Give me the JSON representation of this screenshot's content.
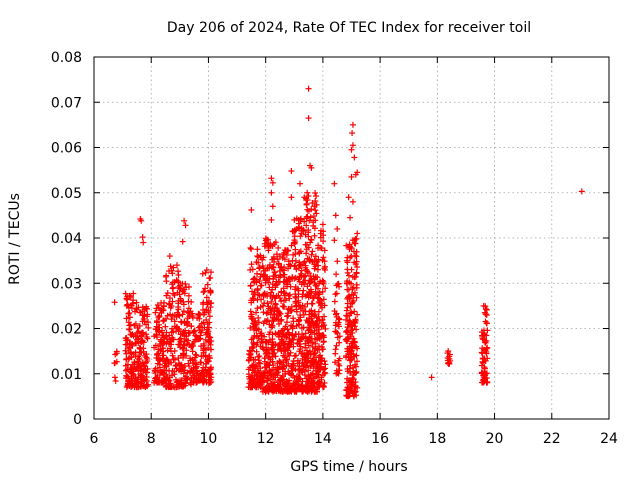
{
  "chart_data": {
    "type": "scatter",
    "title": "Day 206 of 2024, Rate Of TEC Index for receiver toil",
    "xlabel": "GPS time / hours",
    "ylabel": "ROTI / TECUs",
    "xlim": [
      6,
      24
    ],
    "ylim": [
      0,
      0.08
    ],
    "xticks": [
      "6",
      "8",
      "10",
      "12",
      "14",
      "16",
      "18",
      "20",
      "22",
      "24"
    ],
    "yticks": [
      "0",
      "0.01",
      "0.02",
      "0.03",
      "0.04",
      "0.05",
      "0.06",
      "0.07",
      "0.08"
    ],
    "grid": true,
    "marker": "+",
    "color": "#ff0000",
    "clusters": [
      {
        "x_range": [
          6.7,
          6.8
        ],
        "y_range": [
          0.008,
          0.016
        ],
        "count": 8
      },
      {
        "x_range": [
          7.1,
          7.5
        ],
        "y_range": [
          0.007,
          0.028
        ],
        "count": 120
      },
      {
        "x_range": [
          7.5,
          7.9
        ],
        "y_range": [
          0.007,
          0.025
        ],
        "count": 110
      },
      {
        "x_range": [
          8.1,
          8.5
        ],
        "y_range": [
          0.008,
          0.026
        ],
        "count": 110
      },
      {
        "x_range": [
          8.5,
          9.0
        ],
        "y_range": [
          0.007,
          0.034
        ],
        "count": 140
      },
      {
        "x_range": [
          9.0,
          9.4
        ],
        "y_range": [
          0.007,
          0.03
        ],
        "count": 110
      },
      {
        "x_range": [
          9.4,
          9.8
        ],
        "y_range": [
          0.008,
          0.024
        ],
        "count": 80
      },
      {
        "x_range": [
          9.8,
          10.1
        ],
        "y_range": [
          0.008,
          0.033
        ],
        "count": 110
      },
      {
        "x_range": [
          11.4,
          11.9
        ],
        "y_range": [
          0.007,
          0.038
        ],
        "count": 180
      },
      {
        "x_range": [
          11.9,
          12.4
        ],
        "y_range": [
          0.006,
          0.04
        ],
        "count": 220
      },
      {
        "x_range": [
          12.4,
          12.9
        ],
        "y_range": [
          0.006,
          0.038
        ],
        "count": 220
      },
      {
        "x_range": [
          12.9,
          13.4
        ],
        "y_range": [
          0.006,
          0.045
        ],
        "count": 220
      },
      {
        "x_range": [
          13.4,
          13.8
        ],
        "y_range": [
          0.006,
          0.05
        ],
        "count": 240
      },
      {
        "x_range": [
          13.8,
          14.1
        ],
        "y_range": [
          0.007,
          0.042
        ],
        "count": 120
      },
      {
        "x_range": [
          14.4,
          14.6
        ],
        "y_range": [
          0.01,
          0.035
        ],
        "count": 40
      },
      {
        "x_range": [
          14.8,
          15.2
        ],
        "y_range": [
          0.005,
          0.04
        ],
        "count": 190
      },
      {
        "x_range": [
          18.35,
          18.45
        ],
        "y_range": [
          0.012,
          0.015
        ],
        "count": 12
      },
      {
        "x_range": [
          19.55,
          19.75
        ],
        "y_range": [
          0.008,
          0.025
        ],
        "count": 70
      }
    ],
    "points": [
      [
        6.72,
        0.0258
      ],
      [
        7.65,
        0.0438
      ],
      [
        7.62,
        0.0442
      ],
      [
        7.7,
        0.0402
      ],
      [
        7.72,
        0.039
      ],
      [
        9.15,
        0.0438
      ],
      [
        9.2,
        0.0428
      ],
      [
        9.1,
        0.0392
      ],
      [
        8.65,
        0.036
      ],
      [
        8.9,
        0.034
      ],
      [
        11.5,
        0.0462
      ],
      [
        12.2,
        0.0532
      ],
      [
        12.25,
        0.0522
      ],
      [
        12.2,
        0.05
      ],
      [
        12.25,
        0.047
      ],
      [
        12.2,
        0.044
      ],
      [
        12.9,
        0.0548
      ],
      [
        12.9,
        0.049
      ],
      [
        13.2,
        0.052
      ],
      [
        13.35,
        0.049
      ],
      [
        13.5,
        0.073
      ],
      [
        13.5,
        0.0665
      ],
      [
        13.55,
        0.056
      ],
      [
        13.6,
        0.0555
      ],
      [
        13.45,
        0.05
      ],
      [
        13.7,
        0.047
      ],
      [
        14.0,
        0.043
      ],
      [
        14.4,
        0.052
      ],
      [
        14.45,
        0.045
      ],
      [
        14.5,
        0.042
      ],
      [
        14.4,
        0.0395
      ],
      [
        15.05,
        0.065
      ],
      [
        15.02,
        0.0632
      ],
      [
        15.05,
        0.0605
      ],
      [
        15.0,
        0.0595
      ],
      [
        15.1,
        0.0578
      ],
      [
        15.2,
        0.0545
      ],
      [
        15.15,
        0.054
      ],
      [
        15.0,
        0.0535
      ],
      [
        14.9,
        0.049
      ],
      [
        15.05,
        0.048
      ],
      [
        14.95,
        0.0445
      ],
      [
        15.2,
        0.041
      ],
      [
        15.1,
        0.0395
      ],
      [
        17.8,
        0.0092
      ],
      [
        18.38,
        0.015
      ],
      [
        19.62,
        0.025
      ],
      [
        23.05,
        0.0503
      ]
    ]
  }
}
